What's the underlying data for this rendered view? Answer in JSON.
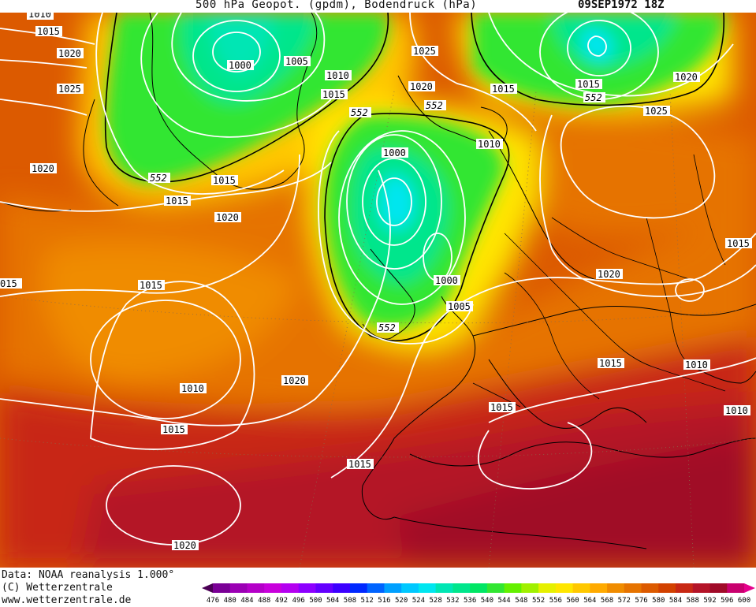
{
  "header": {
    "title": "500 hPa Geopot. (gpdm), Bodendruck (hPa)",
    "datetime": "09SEP1972 18Z"
  },
  "credits": {
    "line1": "Data: NOAA reanalysis 1.000°",
    "line2": "(C) Wetterzentrale",
    "line3": "www.wetterzentrale.de"
  },
  "map": {
    "geopotential_contour_labels": [
      "552",
      "552",
      "552",
      "552",
      "552"
    ],
    "isobar_labels": [
      "1010",
      "1015",
      "1020",
      "1025",
      "1000",
      "1005",
      "1010",
      "1015",
      "1025",
      "1020",
      "1015",
      "1015",
      "1020",
      "1025",
      "1020",
      "1015",
      "1015",
      "1020",
      "1000",
      "1010",
      "1000",
      "1005",
      "1015",
      "1020",
      "1015",
      "1010",
      "1015",
      "1020",
      "1010",
      "1015",
      "1020",
      "1015",
      "1015",
      "1010",
      "1020",
      "1015",
      "015"
    ]
  },
  "colorbar": {
    "ticks": [
      "476",
      "480",
      "484",
      "488",
      "492",
      "496",
      "500",
      "504",
      "508",
      "512",
      "516",
      "520",
      "524",
      "528",
      "532",
      "536",
      "540",
      "544",
      "548",
      "552",
      "556",
      "560",
      "564",
      "568",
      "572",
      "576",
      "580",
      "584",
      "588",
      "592",
      "596",
      "600"
    ],
    "colors": [
      "#4b0055",
      "#7a0096",
      "#9b00b4",
      "#b400c8",
      "#c800dc",
      "#b400f0",
      "#8c00ff",
      "#6400ff",
      "#3c00ff",
      "#0028ff",
      "#0064ff",
      "#00a0ff",
      "#00c8ff",
      "#00e6f0",
      "#00e6b4",
      "#00e68c",
      "#00e664",
      "#32e632",
      "#64f000",
      "#a0f000",
      "#e6f000",
      "#ffe600",
      "#ffc800",
      "#ffaa00",
      "#f08c00",
      "#e67300",
      "#dc5a00",
      "#d24100",
      "#c82814",
      "#b41428",
      "#a00a28",
      "#c8006e",
      "#e6008c"
    ]
  }
}
